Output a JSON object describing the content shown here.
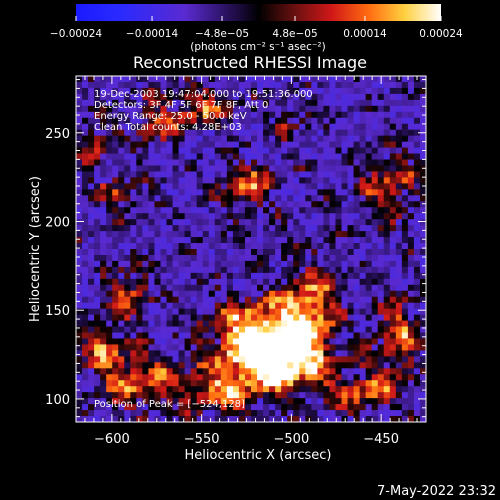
{
  "chart_data": {
    "type": "heatmap",
    "title": "Reconstructed RHESSI Image",
    "xlabel": "Heliocentric X (arcsec)",
    "ylabel": "Heliocentric Y (arcsec)",
    "xlim": [
      -620,
      -425
    ],
    "ylim": [
      87,
      282
    ],
    "x_ticks": [
      {
        "value": -600,
        "label": "−600"
      },
      {
        "value": -550,
        "label": "−550"
      },
      {
        "value": -500,
        "label": "−500"
      },
      {
        "value": -450,
        "label": "−450"
      }
    ],
    "y_ticks": [
      {
        "value": 100,
        "label": "100"
      },
      {
        "value": 150,
        "label": "150"
      },
      {
        "value": 200,
        "label": "200"
      },
      {
        "value": 250,
        "label": "250"
      }
    ],
    "colorbar": {
      "range": [
        -0.00024,
        0.00024
      ],
      "ticks": [
        {
          "value": -0.00024,
          "label": "−0.00024"
        },
        {
          "value": -0.00014,
          "label": "−0.00014"
        },
        {
          "value": -4.8e-05,
          "label": "−4.8e−05"
        },
        {
          "value": 4.8e-05,
          "label": "4.8e−05"
        },
        {
          "value": 0.00014,
          "label": "0.00014"
        },
        {
          "value": 0.00024,
          "label": "0.00024"
        }
      ],
      "units_label": "(photons cm⁻² s⁻¹ asec⁻²)"
    },
    "annotations": [
      "19-Dec-2003 19:47:04.000 to 19:51:36.000",
      "Detectors: 3F 4F 5F 6F 7F 8F, Att 0",
      "Energy Range: 25.0 - 50.0 keV",
      "Clean     Total counts: 4.28E+03"
    ],
    "peak_label": "Position of Peak = [−524,128]",
    "peak": [
      -524,
      128
    ],
    "hot_regions": [
      {
        "x": -520,
        "y": 135,
        "sx": 18,
        "sy": 14,
        "a": 1.0
      },
      {
        "x": -505,
        "y": 120,
        "sx": 16,
        "sy": 12,
        "a": 0.9
      },
      {
        "x": -490,
        "y": 150,
        "sx": 12,
        "sy": 18,
        "a": 0.7
      },
      {
        "x": -540,
        "y": 105,
        "sx": 14,
        "sy": 10,
        "a": 0.65
      },
      {
        "x": -585,
        "y": 110,
        "sx": 16,
        "sy": 12,
        "a": 0.65
      },
      {
        "x": -605,
        "y": 130,
        "sx": 8,
        "sy": 10,
        "a": 0.55
      },
      {
        "x": -590,
        "y": 160,
        "sx": 8,
        "sy": 10,
        "a": 0.6
      },
      {
        "x": -595,
        "y": 215,
        "sx": 9,
        "sy": 8,
        "a": 0.45
      },
      {
        "x": -575,
        "y": 255,
        "sx": 10,
        "sy": 9,
        "a": 0.5
      },
      {
        "x": -550,
        "y": 265,
        "sx": 12,
        "sy": 8,
        "a": 0.55
      },
      {
        "x": -525,
        "y": 220,
        "sx": 10,
        "sy": 10,
        "a": 0.6
      },
      {
        "x": -445,
        "y": 220,
        "sx": 12,
        "sy": 14,
        "a": 0.55
      },
      {
        "x": -440,
        "y": 135,
        "sx": 10,
        "sy": 16,
        "a": 0.6
      },
      {
        "x": -460,
        "y": 105,
        "sx": 14,
        "sy": 10,
        "a": 0.55
      },
      {
        "x": -500,
        "y": 255,
        "sx": 8,
        "sy": 8,
        "a": 0.35
      },
      {
        "x": -610,
        "y": 245,
        "sx": 8,
        "sy": 10,
        "a": 0.45
      }
    ]
  },
  "footer": {
    "timestamp": "7-May-2022 23:32"
  }
}
